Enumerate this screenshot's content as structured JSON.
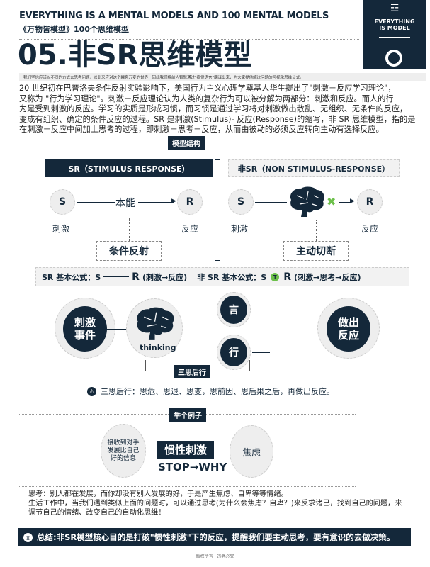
{
  "header": {
    "en_title": "EVERYTHING IS A MENTAL MODELS AND 100 MENTAL MODELS",
    "cn_subtitle": "《万物皆模型》100个思维模型",
    "title": "05.非SR思维模型",
    "tagline": "我们坚信应该以不同的方式去思考问题，以此来应对这个瞬息万变的世界，因此我们将前人智慧通过\"视觉语言\"翻译出来，为大家提供解决问题的可视化思维公式。"
  },
  "logo": {
    "line1": "EVERYTHING",
    "line2": "IS MODEL",
    "mark": "万物"
  },
  "intro": [
    "20 世纪初在巴普洛夫条件反射实验影响下，美国行为主义心理学奠基人华生提出了\"刺激－反应学习理论\"，",
    "又称为 \"行为学习理论\"。刺激－反应理论认为人类的复杂行为可以被分解为两部分：刺激和反应。而人的行",
    "为是受到刺激的反应。学习的实质是形成习惯，而习惯是通过学习将对刺激做出散乱、无组织、无条件的反应，",
    "变成有组织、确定的条件反应的过程。SR 是刺激(Stimulus)- 反应(Response)的缩写，非 SR 思维模型，指的是",
    "在刺激－反应中间加上思考的过程，即刺激－思考－反应，从而由被动的必须反应转向主动有选择反应。"
  ],
  "section1": "模型结构",
  "sr": {
    "header": "SR（STIMULUS RESPONSE）",
    "s": "S",
    "r": "R",
    "middle": "本能",
    "s_label": "刺激",
    "r_label": "反应",
    "note": "条件反射"
  },
  "nonsr": {
    "header": "非SR（NON STIMULUS-RESPONSE）",
    "s": "S",
    "r": "R",
    "s_label": "刺激",
    "r_label": "反应",
    "note": "主动切断"
  },
  "formula": {
    "sr_label": "SR 基本公式：S",
    "sr_r": "R",
    "sr_desc": "(刺激→反应)",
    "nonsr_label": "非 SR 基本公式：S",
    "t": "T",
    "nonsr_r": "R",
    "nonsr_desc": "(刺激→思考→反应)"
  },
  "flow": {
    "stimulus": "刺激事件",
    "thinking": "thinking",
    "speech": "言",
    "action": "行",
    "response": "做出反应",
    "bracket": "三思后行",
    "warning": "三思后行：思危、思退、思变，思前因、思后果之后，再做出反应。"
  },
  "section2": "举个例子",
  "example": {
    "input": "接收到对手发展比自己好的信息",
    "stimulus": "惯性刺激",
    "stop": "STOP→WHY",
    "result": "焦虑"
  },
  "thoughts": [
    "思考：别人都在发展，而你却没有别人发展的好，于是产生焦虑、自卑等等情绪。",
    "生活工作中，当我们遇到类似上面的问题时，可以通过思考(为什么会焦虑？自卑？)来反求诸己，找到自己的问题，来",
    "调节自己的情绪、改变自己的自动化思维！"
  ],
  "summary": "总结:非SR模型核心目的是打破\"惯性刺激\"下的反应，提醒我们要主动思考，要有意识的去做决策。",
  "footer": "版权所有 | 违者必究",
  "colors": {
    "navy": "#14283a",
    "green": "#6cc04a"
  }
}
